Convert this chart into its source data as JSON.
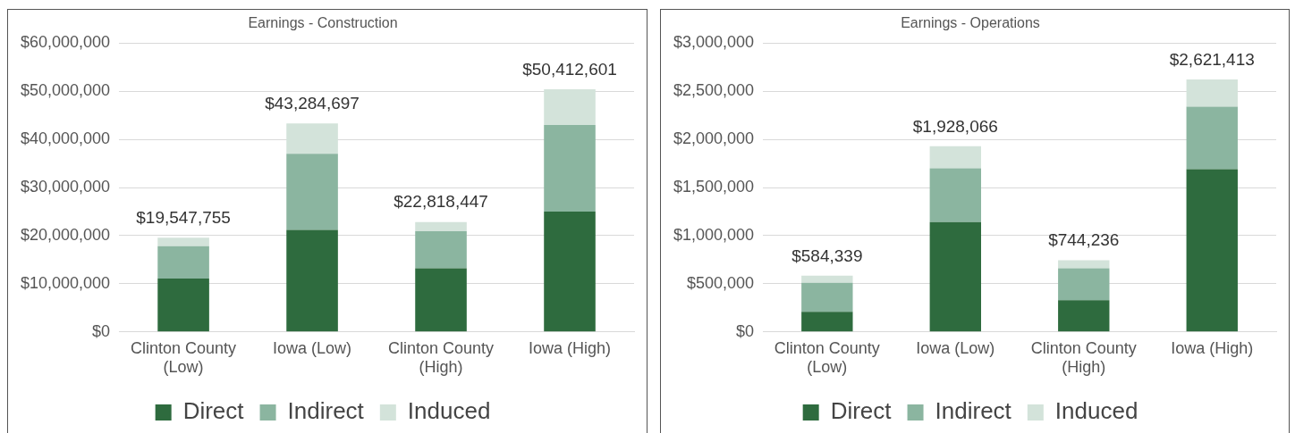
{
  "chart_data": [
    {
      "type": "bar",
      "stacked": true,
      "title": "Earnings - Construction",
      "categories": [
        "Clinton County (Low)",
        "Iowa (Low)",
        "Clinton County (High)",
        "Iowa (High)"
      ],
      "series": [
        {
          "name": "Direct",
          "color": "#2e6b3e",
          "values": [
            11100000,
            21200000,
            13200000,
            25000000
          ]
        },
        {
          "name": "Indirect",
          "color": "#8bb5a0",
          "values": [
            6700000,
            15800000,
            7700000,
            18000000
          ]
        },
        {
          "name": "Induced",
          "color": "#d3e3da",
          "values": [
            1747755,
            6284697,
            1918447,
            7412601
          ]
        }
      ],
      "totals": [
        "$19,547,755",
        "$43,284,697",
        "$22,818,447",
        "$50,412,601"
      ],
      "ylim": [
        0,
        60000000
      ],
      "yticks": [
        {
          "value": 0,
          "label": "$0"
        },
        {
          "value": 10000000,
          "label": "$10,000,000"
        },
        {
          "value": 20000000,
          "label": "$20,000,000"
        },
        {
          "value": 30000000,
          "label": "$30,000,000"
        },
        {
          "value": 40000000,
          "label": "$40,000,000"
        },
        {
          "value": 50000000,
          "label": "$50,000,000"
        },
        {
          "value": 60000000,
          "label": "$60,000,000"
        }
      ],
      "grid": "y",
      "legend": "bottom"
    },
    {
      "type": "bar",
      "stacked": true,
      "title": "Earnings - Operations",
      "categories": [
        "Clinton County (Low)",
        "Iowa (Low)",
        "Clinton County (High)",
        "Iowa (High)"
      ],
      "series": [
        {
          "name": "Direct",
          "color": "#2e6b3e",
          "values": [
            210000,
            1140000,
            330000,
            1690000
          ]
        },
        {
          "name": "Indirect",
          "color": "#8bb5a0",
          "values": [
            300000,
            560000,
            330000,
            650000
          ]
        },
        {
          "name": "Induced",
          "color": "#d3e3da",
          "values": [
            74339,
            228066,
            84236,
            281413
          ]
        }
      ],
      "totals": [
        "$584,339",
        "$1,928,066",
        "$744,236",
        "$2,621,413"
      ],
      "ylim": [
        0,
        3000000
      ],
      "yticks": [
        {
          "value": 0,
          "label": "$0"
        },
        {
          "value": 500000,
          "label": "$500,000"
        },
        {
          "value": 1000000,
          "label": "$1,000,000"
        },
        {
          "value": 1500000,
          "label": "$1,500,000"
        },
        {
          "value": 2000000,
          "label": "$2,000,000"
        },
        {
          "value": 2500000,
          "label": "$2,500,000"
        },
        {
          "value": 3000000,
          "label": "$3,000,000"
        }
      ],
      "grid": "y",
      "legend": "bottom"
    }
  ]
}
